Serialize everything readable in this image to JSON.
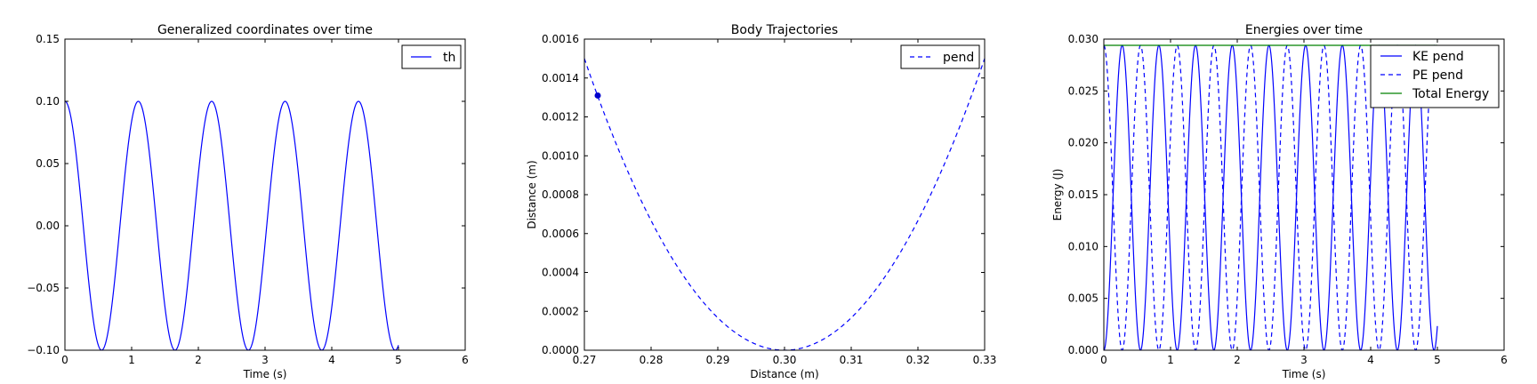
{
  "chart_data": [
    {
      "type": "line",
      "title": "Generalized coordinates over time",
      "xlabel": "Time (s)",
      "ylabel": "",
      "xlim": [
        0,
        6
      ],
      "ylim": [
        -0.1,
        0.15
      ],
      "xticks": [
        0,
        1,
        2,
        3,
        4,
        5,
        6
      ],
      "xtick_labels": [
        "0",
        "1",
        "2",
        "3",
        "4",
        "5",
        "6"
      ],
      "yticks": [
        -0.1,
        -0.05,
        0.0,
        0.05,
        0.1,
        0.15
      ],
      "ytick_labels": [
        "−0.10",
        "−0.05",
        "0.00",
        "0.05",
        "0.10",
        "0.15"
      ],
      "legend_position": "top-right",
      "series": [
        {
          "name": "th",
          "style": "solid",
          "color": "#0000ff",
          "amplitude": 0.1,
          "period_s": 1.1,
          "form": "cosine",
          "x_range": [
            0,
            5.0
          ]
        }
      ]
    },
    {
      "type": "line",
      "title": "Body Trajectories",
      "xlabel": "Distance (m)",
      "ylabel": "Distance (m)",
      "xlim": [
        0.27,
        0.33
      ],
      "ylim": [
        0,
        0.0016
      ],
      "xticks": [
        0.27,
        0.28,
        0.29,
        0.3,
        0.31,
        0.32,
        0.33
      ],
      "xtick_labels": [
        "0.27",
        "0.28",
        "0.29",
        "0.30",
        "0.31",
        "0.32",
        "0.33"
      ],
      "yticks": [
        0,
        0.0002,
        0.0004,
        0.0006,
        0.0008,
        0.001,
        0.0012,
        0.0014,
        0.0016
      ],
      "ytick_labels": [
        "0.0000",
        "0.0002",
        "0.0004",
        "0.0006",
        "0.0008",
        "0.0010",
        "0.0012",
        "0.0014",
        "0.0016"
      ],
      "legend_position": "top-right",
      "series": [
        {
          "name": "pend",
          "style": "dashed",
          "color": "#0000ff",
          "form": "parabola",
          "vertex": [
            0.3,
            0.0
          ],
          "endpoints": [
            [
              0.27,
              0.0015
            ],
            [
              0.33,
              0.0015
            ]
          ]
        }
      ],
      "marker": {
        "x": 0.272,
        "y": 0.00131,
        "color": "#0000cc"
      }
    },
    {
      "type": "line",
      "title": "Energies over time",
      "xlabel": "Time (s)",
      "ylabel": "Energy (J)",
      "xlim": [
        0,
        6
      ],
      "ylim": [
        0,
        0.03
      ],
      "xticks": [
        0,
        1,
        2,
        3,
        4,
        5,
        6
      ],
      "xtick_labels": [
        "0",
        "1",
        "2",
        "3",
        "4",
        "5",
        "6"
      ],
      "yticks": [
        0,
        0.005,
        0.01,
        0.015,
        0.02,
        0.025,
        0.03
      ],
      "ytick_labels": [
        "0.000",
        "0.005",
        "0.010",
        "0.015",
        "0.020",
        "0.025",
        "0.030"
      ],
      "legend_position": "top-right",
      "series": [
        {
          "name": "KE pend",
          "style": "solid",
          "color": "#0000ff",
          "max": 0.0294,
          "form": "sin^2",
          "period_s": 1.1,
          "x_range": [
            0,
            5.0
          ]
        },
        {
          "name": "PE pend",
          "style": "dashed",
          "color": "#0000ff",
          "max": 0.0294,
          "form": "cos^2",
          "period_s": 1.1,
          "x_range": [
            0,
            5.0
          ]
        },
        {
          "name": "Total Energy",
          "style": "solid",
          "color": "#008000",
          "value": 0.0294,
          "x_range": [
            0,
            5.0
          ]
        }
      ]
    }
  ]
}
